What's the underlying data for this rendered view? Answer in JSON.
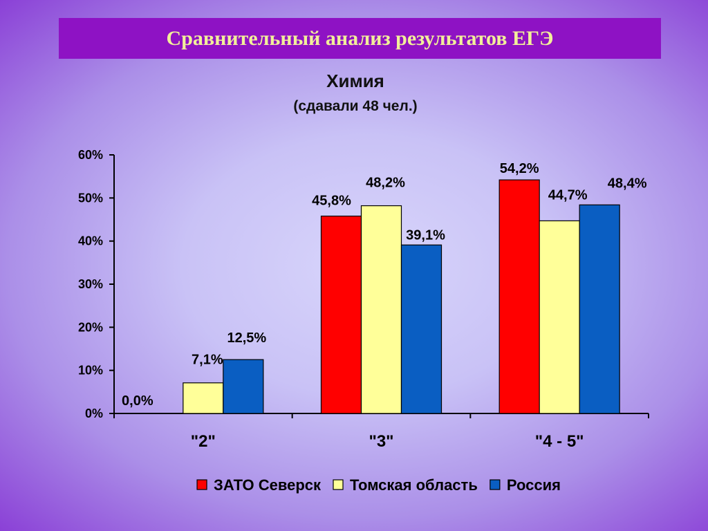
{
  "slide": {
    "title": "Сравнительный анализ результатов ЕГЭ"
  },
  "chart_data": {
    "type": "bar",
    "title": "Химия",
    "subtitle": "(сдавали 48 чел.)",
    "categories": [
      "\"2\"",
      "\"3\"",
      "\"4 - 5\""
    ],
    "y_ticks": [
      "0%",
      "10%",
      "20%",
      "30%",
      "40%",
      "50%",
      "60%"
    ],
    "ylim": [
      0,
      60
    ],
    "grid": false,
    "legend_position": "bottom",
    "series": [
      {
        "name": "ЗАТО Северск",
        "color": "#ff0000",
        "values": [
          0.0,
          45.8,
          54.2
        ],
        "labels": [
          "0,0%",
          "45,8%",
          "54,2%"
        ]
      },
      {
        "name": "Томская область",
        "color": "#ffff99",
        "values": [
          7.1,
          48.2,
          44.7
        ],
        "labels": [
          "7,1%",
          "48,2%",
          "44,7%"
        ]
      },
      {
        "name": "Россия",
        "color": "#0a5ec2",
        "values": [
          12.5,
          39.1,
          48.4
        ],
        "labels": [
          "12,5%",
          "39,1%",
          "48,4%"
        ]
      }
    ]
  }
}
